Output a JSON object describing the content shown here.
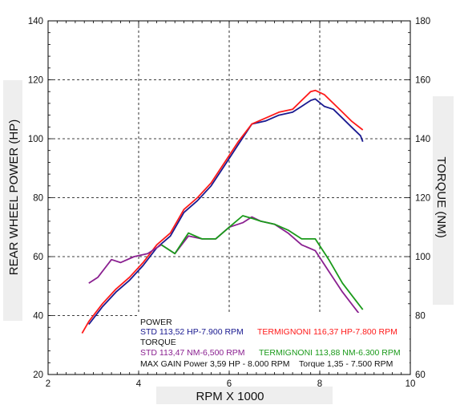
{
  "chart_data": {
    "type": "line",
    "xlabel": "RPM X 1000",
    "ylabel_left": "REAR WHEEL POWER (HP)",
    "ylabel_right": "TORQUE (NM)",
    "xlim": [
      2,
      10
    ],
    "ylim_left": [
      20,
      140
    ],
    "ylim_right": [
      60,
      180
    ],
    "x_ticks": [
      "2",
      "4",
      "6",
      "8",
      "10"
    ],
    "y_ticks_left": [
      "20",
      "40",
      "60",
      "80",
      "100",
      "120",
      "140"
    ],
    "y_ticks_right": [
      "60",
      "80",
      "100",
      "120",
      "140",
      "160",
      "180"
    ],
    "grid": true,
    "series": [
      {
        "name": "STD power",
        "axis": "left",
        "color": "#1a1a90",
        "x": [
          2.9,
          3.2,
          3.5,
          3.8,
          4.1,
          4.4,
          4.7,
          5.0,
          5.3,
          5.6,
          5.9,
          6.2,
          6.5,
          6.8,
          7.1,
          7.4,
          7.6,
          7.8,
          7.9,
          8.1,
          8.3,
          8.5,
          8.7,
          8.9,
          8.95
        ],
        "y": [
          37,
          43,
          48,
          52,
          57,
          63,
          67,
          75,
          79,
          84,
          91,
          98,
          105,
          106,
          108,
          109,
          111,
          113,
          113.5,
          111,
          110,
          107,
          104,
          101,
          99
        ]
      },
      {
        "name": "TERMIGNONI power",
        "axis": "left",
        "color": "#ff1a1a",
        "x": [
          2.75,
          2.9,
          3.2,
          3.5,
          3.8,
          4.1,
          4.4,
          4.7,
          5.0,
          5.3,
          5.6,
          5.9,
          6.2,
          6.5,
          6.8,
          7.1,
          7.4,
          7.6,
          7.8,
          7.9,
          8.1,
          8.3,
          8.5,
          8.7,
          8.95
        ],
        "y": [
          34,
          38,
          44,
          49,
          53,
          58,
          64,
          68,
          76,
          80,
          85,
          92,
          99,
          105,
          107,
          109,
          110,
          113,
          116,
          116.4,
          115,
          112,
          109,
          106,
          103
        ]
      },
      {
        "name": "STD torque",
        "axis": "right",
        "color": "#8a2090",
        "x": [
          2.9,
          3.1,
          3.4,
          3.6,
          3.9,
          4.2,
          4.5,
          4.8,
          5.1,
          5.4,
          5.7,
          6.0,
          6.3,
          6.5,
          6.7,
          7.0,
          7.3,
          7.6,
          7.9,
          8.2,
          8.5,
          8.8,
          8.95
        ],
        "y": [
          91,
          93,
          99,
          98,
          100,
          101,
          104,
          101,
          107,
          106,
          106,
          110,
          111.5,
          113.47,
          112,
          111,
          108,
          104,
          102,
          95,
          88,
          82,
          79
        ]
      },
      {
        "name": "TERMIGNONI torque",
        "axis": "right",
        "color": "#1a9a1a",
        "x": [
          4.5,
          4.8,
          5.1,
          5.4,
          5.7,
          6.0,
          6.3,
          6.5,
          6.7,
          7.0,
          7.3,
          7.6,
          7.9,
          8.2,
          8.5,
          8.8,
          8.95
        ],
        "y": [
          104,
          101,
          108,
          106,
          106,
          110,
          113.88,
          113,
          112,
          111,
          109,
          106,
          106,
          99,
          91,
          85,
          82
        ]
      }
    ],
    "legend": {
      "power_header": "POWER",
      "power_std": "STD 113,52 HP-7.900 RPM",
      "power_termi": "TERMIGNONI 116,37 HP-7.800 RPM",
      "torque_header": "TORQUE",
      "torque_std": "STD 113,47 NM-6,500 RPM",
      "torque_termi": "TERMIGNONI 113,88 NM-6.300 RPM",
      "max_gain": "MAX GAIN Power 3,59 HP - 8.000 RPM    Torque 1,35 - 7.500 RPM"
    }
  },
  "colors": {
    "std_power": "#1a1a90",
    "termi_power": "#ff1a1a",
    "std_torque": "#8a2090",
    "termi_torque": "#1a9a1a"
  }
}
